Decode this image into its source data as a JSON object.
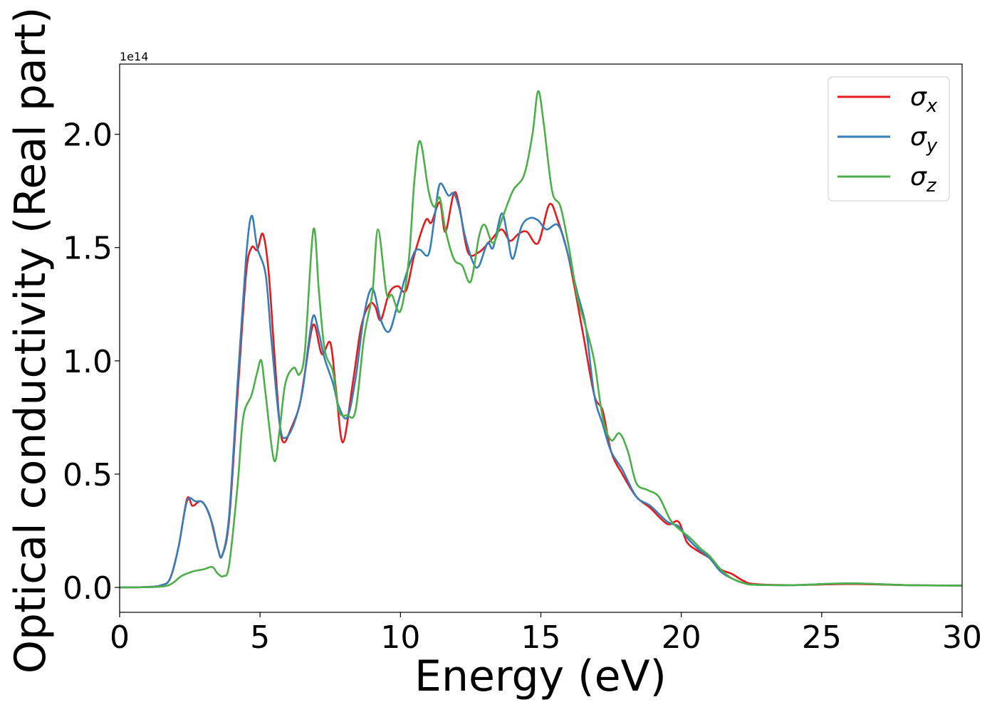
{
  "chart_data": {
    "type": "line",
    "xlabel": "Energy (eV)",
    "ylabel": "Optical conductivity (Real part)",
    "offset_text": "1e14",
    "xlim": [
      0,
      30
    ],
    "ylim": [
      -0.11,
      2.31
    ],
    "x_ticks": [
      0,
      5,
      10,
      15,
      20,
      25,
      30
    ],
    "x_tick_labels": [
      "0",
      "5",
      "10",
      "15",
      "20",
      "25",
      "30"
    ],
    "y_ticks": [
      0.0,
      0.5,
      1.0,
      1.5,
      2.0
    ],
    "y_tick_labels": [
      "0.0",
      "0.5",
      "1.0",
      "1.5",
      "2.0"
    ],
    "grid": false,
    "legend_position": "top-right",
    "series": [
      {
        "name": "σx",
        "symbol": "σ",
        "subscript": "x",
        "color": "#e41a1c",
        "points": [
          [
            0,
            0
          ],
          [
            1,
            0.002
          ],
          [
            1.5,
            0.01
          ],
          [
            1.8,
            0.04
          ],
          [
            2.1,
            0.18
          ],
          [
            2.4,
            0.39
          ],
          [
            2.6,
            0.36
          ],
          [
            2.9,
            0.38
          ],
          [
            3.2,
            0.32
          ],
          [
            3.5,
            0.17
          ],
          [
            3.65,
            0.14
          ],
          [
            3.9,
            0.3
          ],
          [
            4.2,
            0.85
          ],
          [
            4.5,
            1.38
          ],
          [
            4.7,
            1.5
          ],
          [
            4.9,
            1.49
          ],
          [
            5.1,
            1.56
          ],
          [
            5.3,
            1.4
          ],
          [
            5.5,
            1.05
          ],
          [
            5.7,
            0.72
          ],
          [
            5.85,
            0.64
          ],
          [
            6.1,
            0.7
          ],
          [
            6.4,
            0.8
          ],
          [
            6.6,
            0.95
          ],
          [
            6.9,
            1.16
          ],
          [
            7.2,
            1.03
          ],
          [
            7.5,
            1.08
          ],
          [
            7.7,
            0.88
          ],
          [
            7.95,
            0.64
          ],
          [
            8.3,
            0.9
          ],
          [
            8.6,
            1.15
          ],
          [
            8.9,
            1.25
          ],
          [
            9.1,
            1.24
          ],
          [
            9.3,
            1.18
          ],
          [
            9.6,
            1.3
          ],
          [
            9.9,
            1.33
          ],
          [
            10.2,
            1.31
          ],
          [
            10.5,
            1.47
          ],
          [
            10.9,
            1.62
          ],
          [
            11.1,
            1.61
          ],
          [
            11.4,
            1.7
          ],
          [
            11.6,
            1.57
          ],
          [
            11.9,
            1.74
          ],
          [
            12.1,
            1.68
          ],
          [
            12.4,
            1.48
          ],
          [
            12.8,
            1.48
          ],
          [
            13.2,
            1.53
          ],
          [
            13.6,
            1.58
          ],
          [
            13.9,
            1.53
          ],
          [
            14.2,
            1.56
          ],
          [
            14.5,
            1.57
          ],
          [
            14.9,
            1.52
          ],
          [
            15.3,
            1.69
          ],
          [
            15.6,
            1.62
          ],
          [
            16.0,
            1.45
          ],
          [
            16.5,
            1.12
          ],
          [
            16.9,
            0.85
          ],
          [
            17.2,
            0.78
          ],
          [
            17.5,
            0.6
          ],
          [
            17.9,
            0.5
          ],
          [
            18.4,
            0.4
          ],
          [
            18.9,
            0.35
          ],
          [
            19.5,
            0.28
          ],
          [
            19.9,
            0.29
          ],
          [
            20.2,
            0.2
          ],
          [
            20.6,
            0.16
          ],
          [
            21.0,
            0.13
          ],
          [
            21.4,
            0.08
          ],
          [
            21.8,
            0.06
          ],
          [
            22.2,
            0.03
          ],
          [
            22.6,
            0.015
          ],
          [
            24,
            0.01
          ],
          [
            26,
            0.015
          ],
          [
            28,
            0.01
          ],
          [
            30,
            0.008
          ]
        ]
      },
      {
        "name": "σy",
        "symbol": "σ",
        "subscript": "y",
        "color": "#377eb8",
        "points": [
          [
            0,
            0
          ],
          [
            1,
            0.002
          ],
          [
            1.5,
            0.01
          ],
          [
            1.8,
            0.04
          ],
          [
            2.1,
            0.18
          ],
          [
            2.4,
            0.38
          ],
          [
            2.7,
            0.38
          ],
          [
            3.0,
            0.37
          ],
          [
            3.3,
            0.28
          ],
          [
            3.5,
            0.17
          ],
          [
            3.65,
            0.14
          ],
          [
            3.9,
            0.32
          ],
          [
            4.2,
            0.9
          ],
          [
            4.5,
            1.45
          ],
          [
            4.7,
            1.64
          ],
          [
            4.9,
            1.5
          ],
          [
            5.2,
            1.38
          ],
          [
            5.4,
            1.1
          ],
          [
            5.7,
            0.72
          ],
          [
            5.9,
            0.66
          ],
          [
            6.2,
            0.72
          ],
          [
            6.5,
            0.86
          ],
          [
            6.7,
            1.05
          ],
          [
            6.9,
            1.2
          ],
          [
            7.1,
            1.12
          ],
          [
            7.3,
            1.01
          ],
          [
            7.6,
            0.9
          ],
          [
            7.8,
            0.8
          ],
          [
            8.1,
            0.75
          ],
          [
            8.4,
            0.92
          ],
          [
            8.7,
            1.2
          ],
          [
            9.0,
            1.32
          ],
          [
            9.3,
            1.18
          ],
          [
            9.6,
            1.13
          ],
          [
            9.9,
            1.25
          ],
          [
            10.2,
            1.38
          ],
          [
            10.5,
            1.48
          ],
          [
            10.7,
            1.49
          ],
          [
            11.0,
            1.47
          ],
          [
            11.2,
            1.62
          ],
          [
            11.4,
            1.78
          ],
          [
            11.7,
            1.73
          ],
          [
            11.9,
            1.74
          ],
          [
            12.1,
            1.67
          ],
          [
            12.3,
            1.55
          ],
          [
            12.6,
            1.43
          ],
          [
            12.8,
            1.42
          ],
          [
            13.1,
            1.52
          ],
          [
            13.3,
            1.5
          ],
          [
            13.6,
            1.65
          ],
          [
            13.8,
            1.56
          ],
          [
            14.0,
            1.45
          ],
          [
            14.3,
            1.59
          ],
          [
            14.6,
            1.63
          ],
          [
            14.9,
            1.62
          ],
          [
            15.2,
            1.58
          ],
          [
            15.6,
            1.6
          ],
          [
            15.9,
            1.5
          ],
          [
            16.3,
            1.3
          ],
          [
            16.6,
            1.15
          ],
          [
            16.9,
            0.85
          ],
          [
            17.2,
            0.72
          ],
          [
            17.5,
            0.6
          ],
          [
            17.9,
            0.52
          ],
          [
            18.4,
            0.4
          ],
          [
            18.9,
            0.36
          ],
          [
            19.5,
            0.29
          ],
          [
            19.9,
            0.27
          ],
          [
            20.2,
            0.22
          ],
          [
            20.6,
            0.17
          ],
          [
            21.0,
            0.13
          ],
          [
            21.4,
            0.07
          ],
          [
            21.8,
            0.04
          ],
          [
            22.2,
            0.02
          ],
          [
            22.6,
            0.012
          ],
          [
            24,
            0.01
          ],
          [
            26,
            0.018
          ],
          [
            28,
            0.01
          ],
          [
            30,
            0.008
          ]
        ]
      },
      {
        "name": "σz",
        "symbol": "σ",
        "subscript": "z",
        "color": "#4daf4a",
        "points": [
          [
            0,
            0
          ],
          [
            1,
            0.001
          ],
          [
            1.6,
            0.005
          ],
          [
            1.9,
            0.02
          ],
          [
            2.2,
            0.05
          ],
          [
            2.6,
            0.07
          ],
          [
            3.0,
            0.08
          ],
          [
            3.3,
            0.09
          ],
          [
            3.5,
            0.06
          ],
          [
            3.7,
            0.05
          ],
          [
            3.9,
            0.1
          ],
          [
            4.2,
            0.45
          ],
          [
            4.4,
            0.75
          ],
          [
            4.7,
            0.85
          ],
          [
            4.9,
            0.95
          ],
          [
            5.05,
            1.0
          ],
          [
            5.2,
            0.85
          ],
          [
            5.5,
            0.56
          ],
          [
            5.7,
            0.7
          ],
          [
            5.9,
            0.9
          ],
          [
            6.2,
            0.97
          ],
          [
            6.4,
            0.94
          ],
          [
            6.6,
            1.05
          ],
          [
            6.9,
            1.58
          ],
          [
            7.1,
            1.3
          ],
          [
            7.3,
            1.05
          ],
          [
            7.6,
            0.95
          ],
          [
            7.8,
            0.78
          ],
          [
            8.1,
            0.76
          ],
          [
            8.4,
            0.78
          ],
          [
            8.7,
            1.1
          ],
          [
            9.0,
            1.3
          ],
          [
            9.2,
            1.58
          ],
          [
            9.5,
            1.3
          ],
          [
            9.7,
            1.29
          ],
          [
            10.0,
            1.22
          ],
          [
            10.3,
            1.45
          ],
          [
            10.5,
            1.8
          ],
          [
            10.7,
            1.97
          ],
          [
            11.0,
            1.75
          ],
          [
            11.2,
            1.68
          ],
          [
            11.4,
            1.72
          ],
          [
            11.6,
            1.58
          ],
          [
            11.9,
            1.45
          ],
          [
            12.2,
            1.42
          ],
          [
            12.5,
            1.35
          ],
          [
            12.8,
            1.55
          ],
          [
            13.0,
            1.6
          ],
          [
            13.3,
            1.52
          ],
          [
            13.6,
            1.62
          ],
          [
            14.0,
            1.75
          ],
          [
            14.4,
            1.82
          ],
          [
            14.7,
            2.0
          ],
          [
            14.9,
            2.19
          ],
          [
            15.1,
            2.05
          ],
          [
            15.4,
            1.75
          ],
          [
            15.7,
            1.68
          ],
          [
            16.0,
            1.5
          ],
          [
            16.3,
            1.28
          ],
          [
            16.6,
            1.15
          ],
          [
            16.9,
            1.0
          ],
          [
            17.2,
            0.75
          ],
          [
            17.5,
            0.65
          ],
          [
            17.8,
            0.68
          ],
          [
            18.1,
            0.6
          ],
          [
            18.4,
            0.46
          ],
          [
            18.8,
            0.43
          ],
          [
            19.2,
            0.4
          ],
          [
            19.6,
            0.3
          ],
          [
            19.9,
            0.26
          ],
          [
            20.3,
            0.22
          ],
          [
            20.7,
            0.17
          ],
          [
            21.0,
            0.14
          ],
          [
            21.4,
            0.08
          ],
          [
            21.8,
            0.04
          ],
          [
            22.2,
            0.02
          ],
          [
            22.6,
            0.012
          ],
          [
            24,
            0.01
          ],
          [
            26,
            0.018
          ],
          [
            28,
            0.01
          ],
          [
            30,
            0.008
          ]
        ]
      }
    ]
  }
}
